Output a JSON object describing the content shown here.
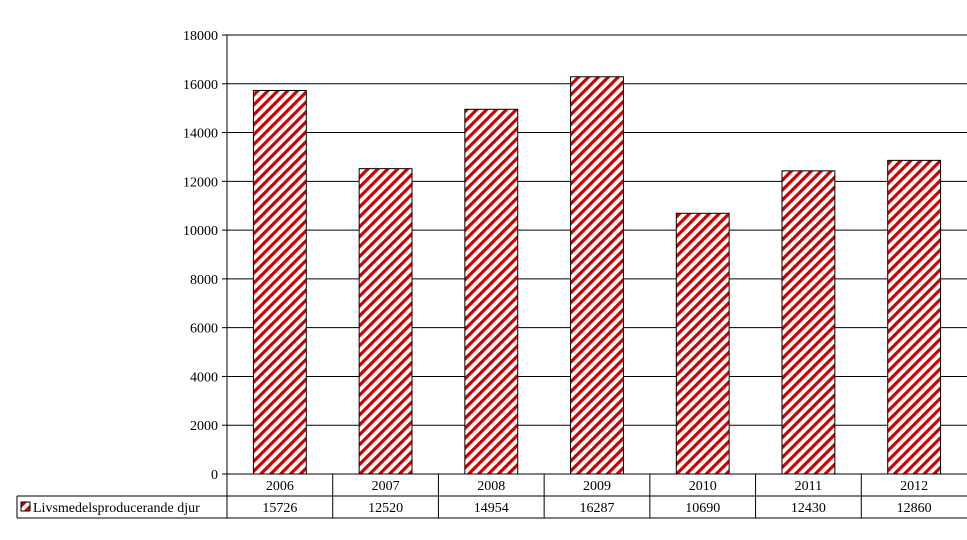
{
  "chart_data": {
    "type": "bar",
    "categories": [
      "2006",
      "2007",
      "2008",
      "2009",
      "2010",
      "2011",
      "2012"
    ],
    "series": [
      {
        "name": "Livsmedelsproducerande djur",
        "values": [
          15726,
          12520,
          14954,
          16287,
          10690,
          12430,
          12860
        ],
        "color": "#cc0000",
        "pattern": "diagonal-hatch"
      }
    ],
    "ylim": [
      0,
      18000
    ],
    "yticks": [
      "0",
      "2000",
      "4000",
      "6000",
      "8000",
      "10000",
      "12000",
      "14000",
      "16000",
      "18000"
    ],
    "grid": true,
    "legend_placement": "data-table-left",
    "data_table": true
  }
}
